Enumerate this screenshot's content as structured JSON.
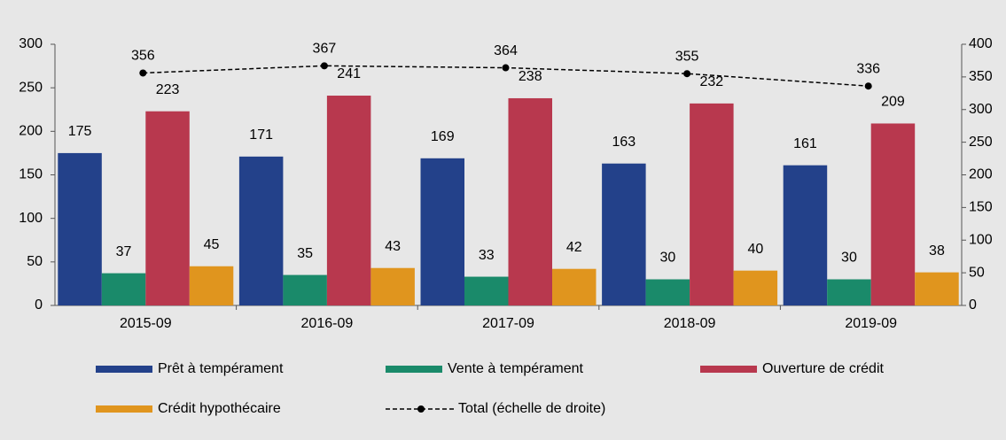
{
  "chart_data": {
    "type": "bar",
    "categories": [
      "2015-09",
      "2016-09",
      "2017-09",
      "2018-09",
      "2019-09"
    ],
    "series": [
      {
        "name": "Prêt à tempérament",
        "color": "#23418a",
        "values": [
          175,
          171,
          169,
          163,
          161
        ]
      },
      {
        "name": "Vente à tempérament",
        "color": "#1a8a6a",
        "values": [
          37,
          35,
          33,
          30,
          30
        ]
      },
      {
        "name": "Ouverture de crédit",
        "color": "#b8384e",
        "values": [
          223,
          241,
          238,
          232,
          209
        ]
      },
      {
        "name": "Crédit hypothécaire",
        "color": "#e0951e",
        "values": [
          45,
          43,
          42,
          40,
          38
        ]
      },
      {
        "name": "Total (échelle de droite)",
        "color": "#000000",
        "type": "line",
        "axis": "y2",
        "values": [
          356,
          367,
          364,
          355,
          336
        ]
      }
    ],
    "ylim": [
      0,
      300
    ],
    "yticks": [
      0,
      50,
      100,
      150,
      200,
      250,
      300
    ],
    "y2lim": [
      0,
      400
    ],
    "y2ticks": [
      0,
      50,
      100,
      150,
      200,
      250,
      300,
      350,
      400
    ],
    "grid": false,
    "legend": "bottom"
  }
}
